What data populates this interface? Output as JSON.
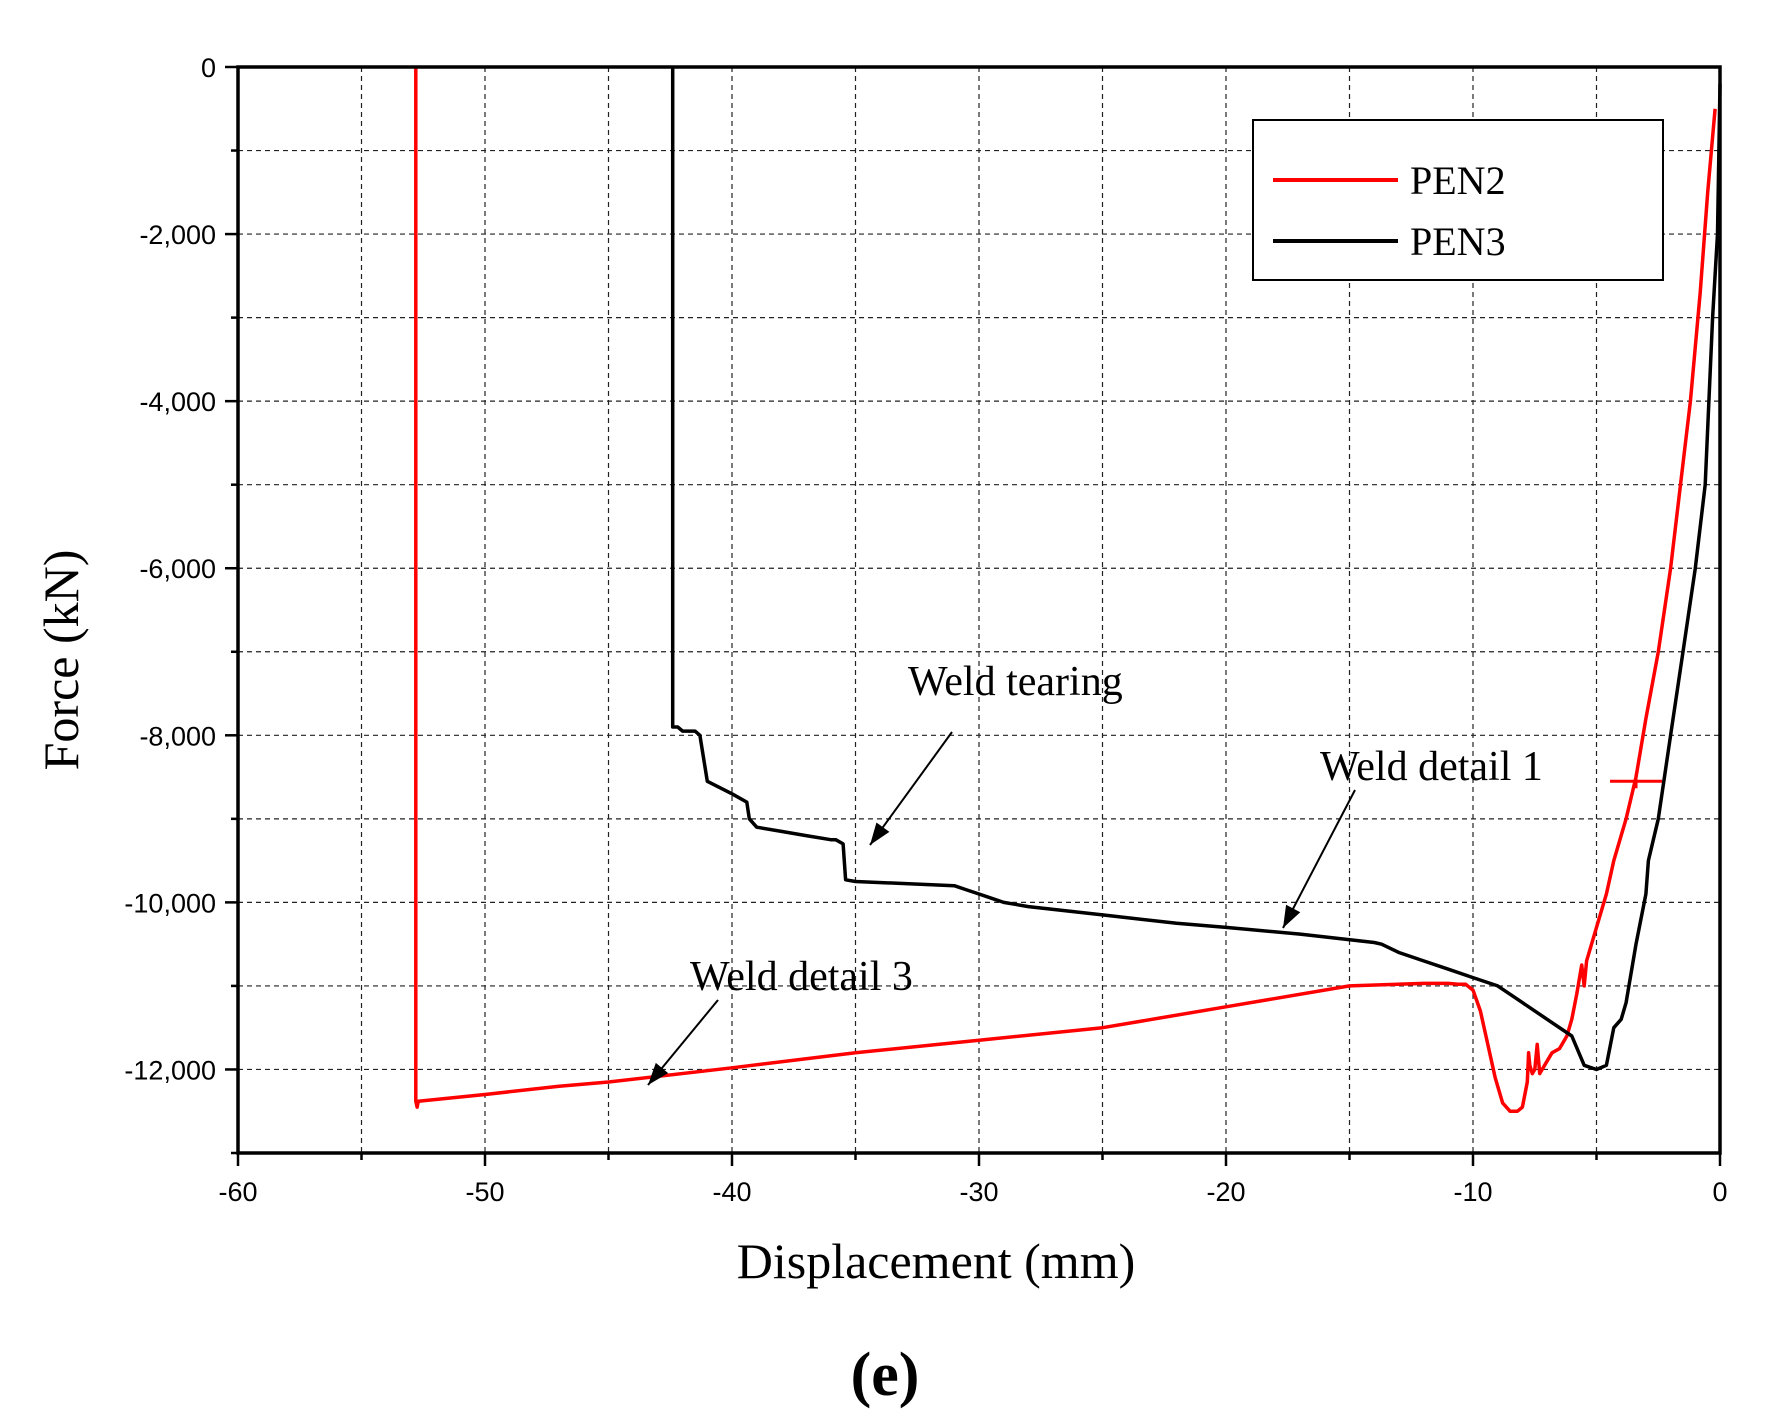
{
  "chart_data": {
    "type": "line",
    "title": "",
    "xlabel": "Displacement (mm)",
    "ylabel": "Force (kN)",
    "xlim": [
      -60,
      0
    ],
    "ylim": [
      -13000,
      0
    ],
    "grid": true,
    "x_ticks": [
      -60,
      -50,
      -40,
      -30,
      -20,
      -10,
      0
    ],
    "x_tick_labels": [
      "-60",
      "-50",
      "-40",
      "-30",
      "-20",
      "-10",
      "0"
    ],
    "y_ticks": [
      0,
      -2000,
      -4000,
      -6000,
      -8000,
      -10000,
      -12000
    ],
    "y_tick_labels": [
      "0",
      "-2,000",
      "-4,000",
      "-6,000",
      "-8,000",
      "-10,000",
      "-12,000"
    ],
    "legend_position": "top-right",
    "panel_label": "(e)",
    "series": [
      {
        "name": "PEN2",
        "color": "#ff0000",
        "x": [
          -0.2,
          -0.5,
          -0.8,
          -1.2,
          -1.6,
          -2.0,
          -2.5,
          -3.0,
          -3.4,
          -3.8,
          -4.3,
          -4.6,
          -5.0,
          -5.3,
          -5.4,
          -5.5,
          -5.6,
          -5.8,
          -6.0,
          -6.2,
          -6.5,
          -6.8,
          -7.1,
          -7.3,
          -7.4,
          -7.5,
          -7.6,
          -7.7,
          -7.75,
          -7.8,
          -8.0,
          -8.2,
          -8.5,
          -8.8,
          -9.1,
          -9.4,
          -9.7,
          -10.0,
          -10.3,
          -10.6,
          -11.0,
          -12.0,
          -15.0,
          -20.0,
          -25.0,
          -30.0,
          -35.0,
          -40.0,
          -45.0,
          -47.0,
          -50.0,
          -52.7,
          -52.75,
          -52.8,
          -52.8
        ],
        "y": [
          -500,
          -1500,
          -2700,
          -4000,
          -5000,
          -6000,
          -7000,
          -7800,
          -8500,
          -9000,
          -9500,
          -9900,
          -10300,
          -10600,
          -10700,
          -11000,
          -10750,
          -11100,
          -11400,
          -11600,
          -11750,
          -11800,
          -11950,
          -12050,
          -11700,
          -12000,
          -12050,
          -11950,
          -11800,
          -12150,
          -12450,
          -12500,
          -12500,
          -12400,
          -12100,
          -11700,
          -11300,
          -11050,
          -10980,
          -10980,
          -10970,
          -10970,
          -11000,
          -11250,
          -11500,
          -11650,
          -11800,
          -11980,
          -12150,
          -12200,
          -12300,
          -12380,
          -12450,
          -12380,
          0
        ]
      },
      {
        "name": "PEN3",
        "color": "#000000",
        "x": [
          0,
          -0.1,
          -0.3,
          -0.6,
          -1.0,
          -1.5,
          -2.0,
          -2.5,
          -2.9,
          -3.0,
          -3.4,
          -3.8,
          -4.0,
          -4.3,
          -4.6,
          -5.0,
          -5.5,
          -6.0,
          -7.0,
          -8.0,
          -9.0,
          -10.0,
          -11.0,
          -12.0,
          -13.0,
          -13.7,
          -14.0,
          -17.0,
          -20.0,
          -22.0,
          -25.0,
          -28.0,
          -29.0,
          -29.5,
          -30.0,
          -30.5,
          -31.0,
          -35.0,
          -35.4,
          -35.5,
          -35.8,
          -36.0,
          -37.0,
          -38.0,
          -39.0,
          -39.3,
          -39.4,
          -40.0,
          -41.0,
          -41.3,
          -41.5,
          -42.0,
          -42.2,
          -42.4,
          -42.4
        ],
        "y": [
          -200,
          -2000,
          -3000,
          -5000,
          -6000,
          -7000,
          -8000,
          -9000,
          -9500,
          -9900,
          -10500,
          -11200,
          -11400,
          -11500,
          -11950,
          -12000,
          -11950,
          -11600,
          -11400,
          -11200,
          -11000,
          -10900,
          -10800,
          -10700,
          -10600,
          -10500,
          -10480,
          -10380,
          -10300,
          -10250,
          -10150,
          -10050,
          -10000,
          -9950,
          -9900,
          -9850,
          -9800,
          -9750,
          -9730,
          -9300,
          -9250,
          -9250,
          -9200,
          -9150,
          -9100,
          -9000,
          -8800,
          -8700,
          -8550,
          -8000,
          -7950,
          -7950,
          -7900,
          -7900,
          0
        ]
      }
    ],
    "annotations": [
      {
        "text": "Weld tearing",
        "x": -34.8,
        "y": -9300
      },
      {
        "text": "Weld detail 1",
        "x": -17.0,
        "y": -10300
      },
      {
        "text": "Weld detail 3",
        "x": -43.5,
        "y": -12150
      }
    ]
  }
}
